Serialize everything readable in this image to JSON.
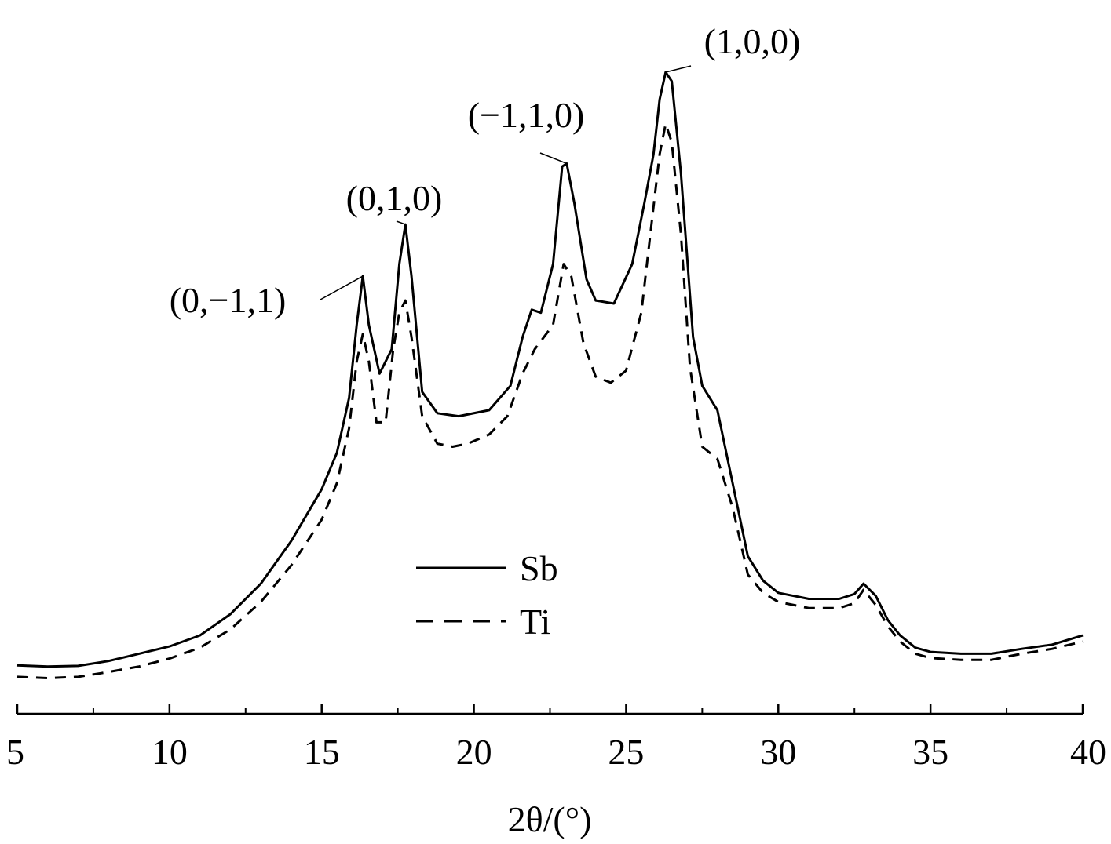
{
  "chart_data": {
    "type": "line",
    "title": "",
    "xlabel": "2θ/(°)",
    "ylabel": "",
    "xlim": [
      5,
      40
    ],
    "x_ticks": [
      5,
      10,
      15,
      20,
      25,
      30,
      35,
      40
    ],
    "x_tick_labels": [
      "5",
      "10",
      "15",
      "20",
      "25",
      "30",
      "35",
      "40"
    ],
    "y_axis_shown": false,
    "grid": false,
    "legend_position": "center",
    "series": [
      {
        "name": "Sb",
        "style": "solid",
        "color": "#000000",
        "points": [
          [
            5.0,
            4.1
          ],
          [
            6.0,
            3.9
          ],
          [
            7.0,
            4.0
          ],
          [
            8.0,
            4.8
          ],
          [
            9.0,
            6.0
          ],
          [
            10.0,
            7.2
          ],
          [
            11.0,
            9.0
          ],
          [
            12.0,
            12.5
          ],
          [
            13.0,
            17.5
          ],
          [
            14.0,
            24.5
          ],
          [
            15.0,
            33.0
          ],
          [
            15.5,
            39.0
          ],
          [
            15.9,
            48.0
          ],
          [
            16.15,
            60.0
          ],
          [
            16.35,
            68.0
          ],
          [
            16.55,
            60.0
          ],
          [
            16.9,
            52.0
          ],
          [
            17.3,
            56.0
          ],
          [
            17.55,
            70.0
          ],
          [
            17.75,
            76.5
          ],
          [
            17.95,
            68.0
          ],
          [
            18.3,
            49.0
          ],
          [
            18.8,
            45.5
          ],
          [
            19.5,
            45.0
          ],
          [
            20.5,
            46.0
          ],
          [
            21.2,
            50.0
          ],
          [
            21.6,
            58.0
          ],
          [
            21.9,
            62.5
          ],
          [
            22.2,
            62.0
          ],
          [
            22.6,
            70.0
          ],
          [
            22.9,
            86.0
          ],
          [
            23.05,
            86.5
          ],
          [
            23.3,
            80.0
          ],
          [
            23.7,
            67.5
          ],
          [
            24.0,
            64.0
          ],
          [
            24.6,
            63.5
          ],
          [
            25.2,
            70.0
          ],
          [
            25.6,
            80.0
          ],
          [
            25.9,
            88.0
          ],
          [
            26.1,
            97.0
          ],
          [
            26.3,
            101.5
          ],
          [
            26.5,
            100.0
          ],
          [
            26.8,
            85.0
          ],
          [
            27.2,
            58.0
          ],
          [
            27.5,
            50.0
          ],
          [
            28.0,
            46.0
          ],
          [
            28.5,
            34.0
          ],
          [
            29.0,
            22.0
          ],
          [
            29.5,
            18.0
          ],
          [
            30.0,
            16.0
          ],
          [
            31.0,
            15.0
          ],
          [
            32.0,
            15.0
          ],
          [
            32.5,
            15.8
          ],
          [
            32.8,
            17.5
          ],
          [
            33.2,
            15.5
          ],
          [
            33.6,
            11.5
          ],
          [
            34.0,
            9.0
          ],
          [
            34.5,
            7.0
          ],
          [
            35.0,
            6.3
          ],
          [
            36.0,
            6.0
          ],
          [
            37.0,
            6.0
          ],
          [
            38.0,
            6.8
          ],
          [
            39.0,
            7.5
          ],
          [
            40.0,
            9.0
          ]
        ]
      },
      {
        "name": "Ti",
        "style": "dashed",
        "color": "#000000",
        "points": [
          [
            5.0,
            2.2
          ],
          [
            6.0,
            2.0
          ],
          [
            7.0,
            2.2
          ],
          [
            8.0,
            3.0
          ],
          [
            9.0,
            3.9
          ],
          [
            10.0,
            5.2
          ],
          [
            11.0,
            7.0
          ],
          [
            12.0,
            10.0
          ],
          [
            13.0,
            14.5
          ],
          [
            14.0,
            20.5
          ],
          [
            15.0,
            28.0
          ],
          [
            15.5,
            34.0
          ],
          [
            15.9,
            43.0
          ],
          [
            16.15,
            54.0
          ],
          [
            16.35,
            58.5
          ],
          [
            16.55,
            54.0
          ],
          [
            16.8,
            44.0
          ],
          [
            17.1,
            44.0
          ],
          [
            17.35,
            56.0
          ],
          [
            17.55,
            62.0
          ],
          [
            17.75,
            64.0
          ],
          [
            17.95,
            58.0
          ],
          [
            18.3,
            45.0
          ],
          [
            18.8,
            40.5
          ],
          [
            19.3,
            40.0
          ],
          [
            19.8,
            40.5
          ],
          [
            20.5,
            42.0
          ],
          [
            21.1,
            45.0
          ],
          [
            21.6,
            52.0
          ],
          [
            22.0,
            56.0
          ],
          [
            22.6,
            60.0
          ],
          [
            22.95,
            70.0
          ],
          [
            23.2,
            68.0
          ],
          [
            23.6,
            57.0
          ],
          [
            24.0,
            51.5
          ],
          [
            24.5,
            50.5
          ],
          [
            25.0,
            52.5
          ],
          [
            25.5,
            62.0
          ],
          [
            25.8,
            75.0
          ],
          [
            26.1,
            88.0
          ],
          [
            26.3,
            93.0
          ],
          [
            26.5,
            90.0
          ],
          [
            26.8,
            75.0
          ],
          [
            27.1,
            53.0
          ],
          [
            27.5,
            40.0
          ],
          [
            28.0,
            38.0
          ],
          [
            28.5,
            30.0
          ],
          [
            29.0,
            19.0
          ],
          [
            29.5,
            16.0
          ],
          [
            30.0,
            14.5
          ],
          [
            31.0,
            13.5
          ],
          [
            32.0,
            13.5
          ],
          [
            32.5,
            14.3
          ],
          [
            32.8,
            16.5
          ],
          [
            33.2,
            14.0
          ],
          [
            33.6,
            10.5
          ],
          [
            34.0,
            8.0
          ],
          [
            34.5,
            6.0
          ],
          [
            35.0,
            5.3
          ],
          [
            36.0,
            5.0
          ],
          [
            37.0,
            5.0
          ],
          [
            38.0,
            6.0
          ],
          [
            39.0,
            6.8
          ],
          [
            40.0,
            8.0
          ]
        ]
      }
    ],
    "annotations": [
      {
        "text": "(0,−1,1)",
        "x": 16.35,
        "y": 68.0
      },
      {
        "text": "(0,1,0)",
        "x": 17.75,
        "y": 76.5
      },
      {
        "text": "(−1,1,0)",
        "x": 23.05,
        "y": 86.5
      },
      {
        "text": "(1,0,0)",
        "x": 26.3,
        "y": 101.5
      }
    ]
  }
}
